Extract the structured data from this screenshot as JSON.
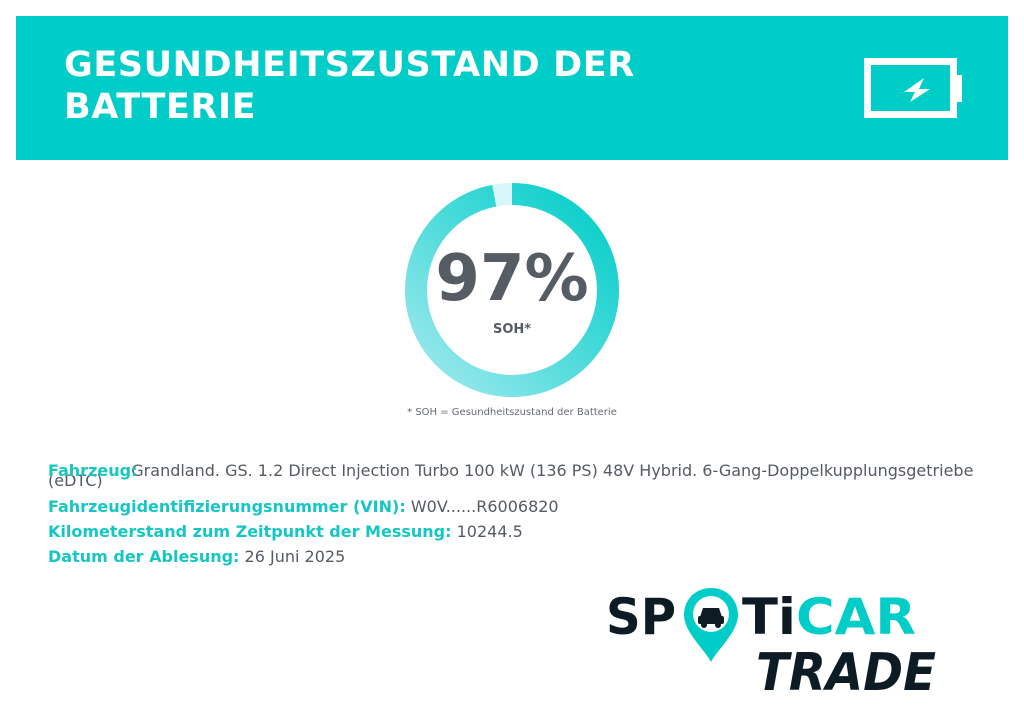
{
  "header": {
    "title": "GESUNDHEITSZUSTAND DER BATTERIE",
    "icon": "battery-charging-icon"
  },
  "gauge": {
    "value_text": "97%",
    "value": 97,
    "label": "SOH*",
    "colors": {
      "ring_light": "#8ee6ea",
      "ring_dark": "#00cdc8"
    }
  },
  "footnote": "* SOH = Gesundheitszustand der Batterie",
  "info": {
    "vehicle": {
      "label": "Fahrzeug:",
      "value": "Grandland. GS. 1.2 Direct Injection Turbo 100 kW (136 PS) 48V Hybrid. 6-Gang-Doppelkupplungsgetriebe",
      "value_wrap": "(eDTC)"
    },
    "vin": {
      "label": "Fahrzeugidentifizierungsnummer (VIN):",
      "value": "W0V......R6006820"
    },
    "mileage": {
      "label": "Kilometerstand zum Zeitpunkt der Messung:",
      "value": "10244.5"
    },
    "date": {
      "label": "Datum der Ablesung:",
      "value": "26 Juni 2025"
    }
  },
  "logo": {
    "line1_a": "SP",
    "line1_b": "TiCAR",
    "line2": "TRADE",
    "colors": {
      "dark": "#0d1b24",
      "accent": "#00cdc8"
    }
  },
  "colors": {
    "accent": "#00cdc8",
    "label": "#16c6c3",
    "text": "#555b63"
  }
}
